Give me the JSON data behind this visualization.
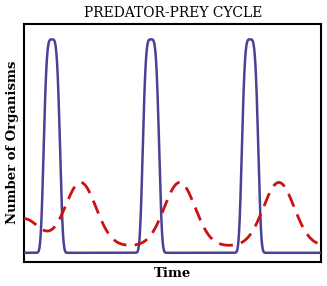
{
  "title": "PREDATOR-PREY CYCLE",
  "xlabel": "Time",
  "ylabel": "Number of Organisms",
  "prey_color": "#4B4096",
  "predator_color": "#CC1111",
  "prey_linewidth": 1.8,
  "predator_linewidth": 2.0,
  "background_color": "#ffffff",
  "plot_bg_color": "#ffffff",
  "title_fontsize": 10,
  "label_fontsize": 9.5,
  "period": 1.0,
  "xlim": [
    0,
    3.0
  ],
  "ylim": [
    0.0,
    1.05
  ]
}
